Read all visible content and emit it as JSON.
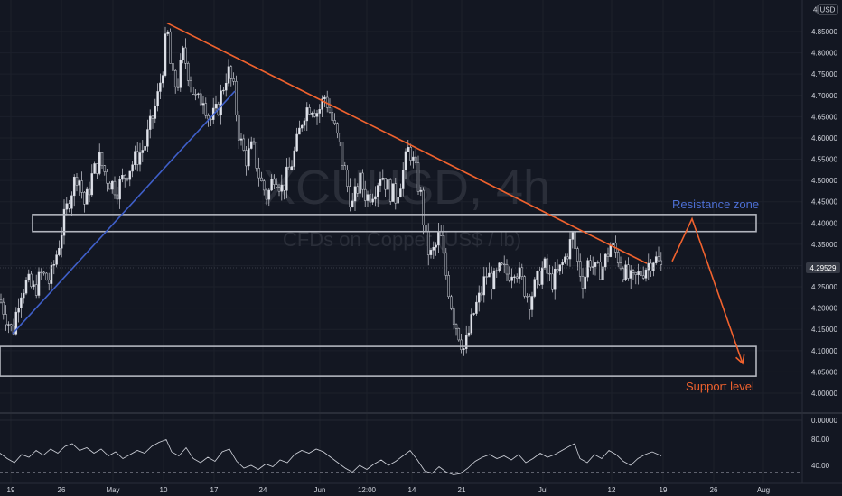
{
  "chart_data": [
    {
      "type": "candlestick",
      "watermark_symbol": "XCUUSD, 4h",
      "watermark_name": "CFDs on Copper (US$ / lb)",
      "currency_label": "USD",
      "last_price": "4.29529",
      "y_ticks": [
        "4.85000",
        "4.80000",
        "4.75000",
        "4.70000",
        "4.65000",
        "4.60000",
        "4.55000",
        "4.50000",
        "4.45000",
        "4.40000",
        "4.35000",
        "4.30000",
        "4.25000",
        "4.20000",
        "4.15000",
        "4.10000",
        "4.05000",
        "4.00000"
      ],
      "ylim": [
        3.98,
        4.89
      ],
      "x_ticks": [
        "19",
        "26",
        "May",
        "10",
        "17",
        "24",
        "Jun",
        "12:00",
        "14",
        "21",
        "Jul",
        "12",
        "19",
        "26",
        "Aug"
      ],
      "price_path": [
        {
          "x": 0,
          "y": 4.22
        },
        {
          "x": 7,
          "y": 4.18
        },
        {
          "x": 14,
          "y": 4.14
        },
        {
          "x": 22,
          "y": 4.24
        },
        {
          "x": 30,
          "y": 4.26
        },
        {
          "x": 38,
          "y": 4.24
        },
        {
          "x": 46,
          "y": 4.28
        },
        {
          "x": 55,
          "y": 4.26
        },
        {
          "x": 64,
          "y": 4.34
        },
        {
          "x": 70,
          "y": 4.4
        },
        {
          "x": 78,
          "y": 4.47
        },
        {
          "x": 86,
          "y": 4.52
        },
        {
          "x": 94,
          "y": 4.44
        },
        {
          "x": 102,
          "y": 4.51
        },
        {
          "x": 110,
          "y": 4.55
        },
        {
          "x": 120,
          "y": 4.5
        },
        {
          "x": 130,
          "y": 4.48
        },
        {
          "x": 140,
          "y": 4.52
        },
        {
          "x": 150,
          "y": 4.55
        },
        {
          "x": 160,
          "y": 4.58
        },
        {
          "x": 168,
          "y": 4.64
        },
        {
          "x": 175,
          "y": 4.7
        },
        {
          "x": 181,
          "y": 4.78
        },
        {
          "x": 185,
          "y": 4.86
        },
        {
          "x": 190,
          "y": 4.74
        },
        {
          "x": 196,
          "y": 4.72
        },
        {
          "x": 203,
          "y": 4.8
        },
        {
          "x": 210,
          "y": 4.74
        },
        {
          "x": 218,
          "y": 4.68
        },
        {
          "x": 225,
          "y": 4.7
        },
        {
          "x": 232,
          "y": 4.64
        },
        {
          "x": 240,
          "y": 4.66
        },
        {
          "x": 247,
          "y": 4.72
        },
        {
          "x": 252,
          "y": 4.76
        },
        {
          "x": 258,
          "y": 4.72
        },
        {
          "x": 265,
          "y": 4.6
        },
        {
          "x": 272,
          "y": 4.55
        },
        {
          "x": 280,
          "y": 4.58
        },
        {
          "x": 288,
          "y": 4.5
        },
        {
          "x": 296,
          "y": 4.46
        },
        {
          "x": 304,
          "y": 4.52
        },
        {
          "x": 312,
          "y": 4.48
        },
        {
          "x": 320,
          "y": 4.52
        },
        {
          "x": 328,
          "y": 4.58
        },
        {
          "x": 336,
          "y": 4.66
        },
        {
          "x": 344,
          "y": 4.68
        },
        {
          "x": 352,
          "y": 4.66
        },
        {
          "x": 360,
          "y": 4.7
        },
        {
          "x": 368,
          "y": 4.64
        },
        {
          "x": 376,
          "y": 4.58
        },
        {
          "x": 383,
          "y": 4.5
        },
        {
          "x": 390,
          "y": 4.44
        },
        {
          "x": 398,
          "y": 4.5
        },
        {
          "x": 406,
          "y": 4.46
        },
        {
          "x": 414,
          "y": 4.48
        },
        {
          "x": 422,
          "y": 4.52
        },
        {
          "x": 430,
          "y": 4.48
        },
        {
          "x": 438,
          "y": 4.46
        },
        {
          "x": 446,
          "y": 4.52
        },
        {
          "x": 453,
          "y": 4.58
        },
        {
          "x": 460,
          "y": 4.52
        },
        {
          "x": 466,
          "y": 4.46
        },
        {
          "x": 471,
          "y": 4.36
        },
        {
          "x": 476,
          "y": 4.32
        },
        {
          "x": 482,
          "y": 4.34
        },
        {
          "x": 487,
          "y": 4.38
        },
        {
          "x": 492,
          "y": 4.3
        },
        {
          "x": 497,
          "y": 4.24
        },
        {
          "x": 502,
          "y": 4.18
        },
        {
          "x": 508,
          "y": 4.14
        },
        {
          "x": 514,
          "y": 4.1
        },
        {
          "x": 520,
          "y": 4.15
        },
        {
          "x": 526,
          "y": 4.2
        },
        {
          "x": 532,
          "y": 4.23
        },
        {
          "x": 538,
          "y": 4.28
        },
        {
          "x": 546,
          "y": 4.26
        },
        {
          "x": 554,
          "y": 4.29
        },
        {
          "x": 562,
          "y": 4.28
        },
        {
          "x": 570,
          "y": 4.3
        },
        {
          "x": 578,
          "y": 4.26
        },
        {
          "x": 586,
          "y": 4.22
        },
        {
          "x": 594,
          "y": 4.26
        },
        {
          "x": 602,
          "y": 4.3
        },
        {
          "x": 610,
          "y": 4.26
        },
        {
          "x": 618,
          "y": 4.28
        },
        {
          "x": 626,
          "y": 4.32
        },
        {
          "x": 634,
          "y": 4.37
        },
        {
          "x": 640,
          "y": 4.3
        },
        {
          "x": 646,
          "y": 4.26
        },
        {
          "x": 652,
          "y": 4.32
        },
        {
          "x": 660,
          "y": 4.28
        },
        {
          "x": 668,
          "y": 4.3
        },
        {
          "x": 676,
          "y": 4.35
        },
        {
          "x": 684,
          "y": 4.32
        },
        {
          "x": 692,
          "y": 4.28
        },
        {
          "x": 700,
          "y": 4.26
        },
        {
          "x": 708,
          "y": 4.28
        },
        {
          "x": 716,
          "y": 4.3
        },
        {
          "x": 724,
          "y": 4.32
        },
        {
          "x": 732,
          "y": 4.295
        }
      ],
      "trendlines": [
        {
          "name": "blue-support-trendline",
          "color": "#3f5fc9",
          "from": {
            "x": 14,
            "y": 4.14
          },
          "to": {
            "x": 260,
            "y": 4.71
          }
        },
        {
          "name": "orange-resistance-trendline",
          "color": "#f0622e",
          "from": {
            "x": 185,
            "y": 4.87
          },
          "to": {
            "x": 716,
            "y": 4.305
          }
        }
      ],
      "zones": [
        {
          "name": "resistance-zone-box",
          "x0": 36,
          "x1": 837,
          "y_top": 4.42,
          "y_bottom": 4.38,
          "color": "#b2b5be"
        },
        {
          "name": "support-zone-box",
          "x0": 0,
          "x1": 837,
          "y_top": 4.11,
          "y_bottom": 4.04,
          "color": "#b2b5be"
        }
      ],
      "forecast_path": {
        "color": "#f0622e",
        "points": [
          {
            "x": 744,
            "y": 4.31
          },
          {
            "x": 766,
            "y": 4.41
          },
          {
            "x": 822,
            "y": 4.07
          }
        ]
      },
      "annotations": [
        {
          "name": "resistance-zone-label",
          "text": "Resistance zone",
          "color": "#4d6fd4"
        },
        {
          "name": "support-level-label",
          "text": "Support level",
          "color": "#f0622e"
        }
      ]
    },
    {
      "type": "line",
      "y_ticks": [
        "80.00",
        "40.00"
      ],
      "top_line_label": "0.00000",
      "ylim": [
        20,
        100
      ],
      "dashed_levels": [
        70,
        30
      ],
      "oscillator": [
        {
          "x": 0,
          "y": 58
        },
        {
          "x": 8,
          "y": 50
        },
        {
          "x": 16,
          "y": 44
        },
        {
          "x": 24,
          "y": 56
        },
        {
          "x": 32,
          "y": 52
        },
        {
          "x": 40,
          "y": 62
        },
        {
          "x": 48,
          "y": 55
        },
        {
          "x": 56,
          "y": 64
        },
        {
          "x": 64,
          "y": 58
        },
        {
          "x": 72,
          "y": 68
        },
        {
          "x": 80,
          "y": 72
        },
        {
          "x": 88,
          "y": 62
        },
        {
          "x": 96,
          "y": 66
        },
        {
          "x": 104,
          "y": 58
        },
        {
          "x": 112,
          "y": 64
        },
        {
          "x": 120,
          "y": 54
        },
        {
          "x": 128,
          "y": 60
        },
        {
          "x": 136,
          "y": 50
        },
        {
          "x": 144,
          "y": 56
        },
        {
          "x": 152,
          "y": 62
        },
        {
          "x": 160,
          "y": 58
        },
        {
          "x": 168,
          "y": 68
        },
        {
          "x": 176,
          "y": 74
        },
        {
          "x": 184,
          "y": 78
        },
        {
          "x": 190,
          "y": 60
        },
        {
          "x": 198,
          "y": 54
        },
        {
          "x": 206,
          "y": 66
        },
        {
          "x": 214,
          "y": 50
        },
        {
          "x": 222,
          "y": 44
        },
        {
          "x": 230,
          "y": 52
        },
        {
          "x": 238,
          "y": 46
        },
        {
          "x": 246,
          "y": 60
        },
        {
          "x": 254,
          "y": 64
        },
        {
          "x": 262,
          "y": 46
        },
        {
          "x": 270,
          "y": 36
        },
        {
          "x": 278,
          "y": 40
        },
        {
          "x": 286,
          "y": 34
        },
        {
          "x": 294,
          "y": 42
        },
        {
          "x": 302,
          "y": 38
        },
        {
          "x": 310,
          "y": 48
        },
        {
          "x": 318,
          "y": 44
        },
        {
          "x": 326,
          "y": 56
        },
        {
          "x": 334,
          "y": 62
        },
        {
          "x": 342,
          "y": 58
        },
        {
          "x": 350,
          "y": 64
        },
        {
          "x": 358,
          "y": 60
        },
        {
          "x": 366,
          "y": 52
        },
        {
          "x": 374,
          "y": 44
        },
        {
          "x": 382,
          "y": 36
        },
        {
          "x": 390,
          "y": 30
        },
        {
          "x": 398,
          "y": 40
        },
        {
          "x": 406,
          "y": 34
        },
        {
          "x": 414,
          "y": 42
        },
        {
          "x": 422,
          "y": 48
        },
        {
          "x": 430,
          "y": 40
        },
        {
          "x": 438,
          "y": 46
        },
        {
          "x": 446,
          "y": 54
        },
        {
          "x": 454,
          "y": 62
        },
        {
          "x": 462,
          "y": 48
        },
        {
          "x": 470,
          "y": 32
        },
        {
          "x": 478,
          "y": 28
        },
        {
          "x": 486,
          "y": 38
        },
        {
          "x": 494,
          "y": 30
        },
        {
          "x": 502,
          "y": 26
        },
        {
          "x": 510,
          "y": 28
        },
        {
          "x": 518,
          "y": 36
        },
        {
          "x": 526,
          "y": 46
        },
        {
          "x": 534,
          "y": 52
        },
        {
          "x": 542,
          "y": 56
        },
        {
          "x": 550,
          "y": 50
        },
        {
          "x": 558,
          "y": 54
        },
        {
          "x": 566,
          "y": 48
        },
        {
          "x": 574,
          "y": 56
        },
        {
          "x": 582,
          "y": 44
        },
        {
          "x": 590,
          "y": 50
        },
        {
          "x": 598,
          "y": 58
        },
        {
          "x": 606,
          "y": 52
        },
        {
          "x": 614,
          "y": 56
        },
        {
          "x": 622,
          "y": 62
        },
        {
          "x": 630,
          "y": 68
        },
        {
          "x": 636,
          "y": 72
        },
        {
          "x": 642,
          "y": 50
        },
        {
          "x": 650,
          "y": 44
        },
        {
          "x": 658,
          "y": 56
        },
        {
          "x": 666,
          "y": 50
        },
        {
          "x": 674,
          "y": 62
        },
        {
          "x": 682,
          "y": 56
        },
        {
          "x": 690,
          "y": 46
        },
        {
          "x": 698,
          "y": 40
        },
        {
          "x": 706,
          "y": 50
        },
        {
          "x": 714,
          "y": 56
        },
        {
          "x": 722,
          "y": 60
        },
        {
          "x": 732,
          "y": 54
        }
      ]
    }
  ]
}
